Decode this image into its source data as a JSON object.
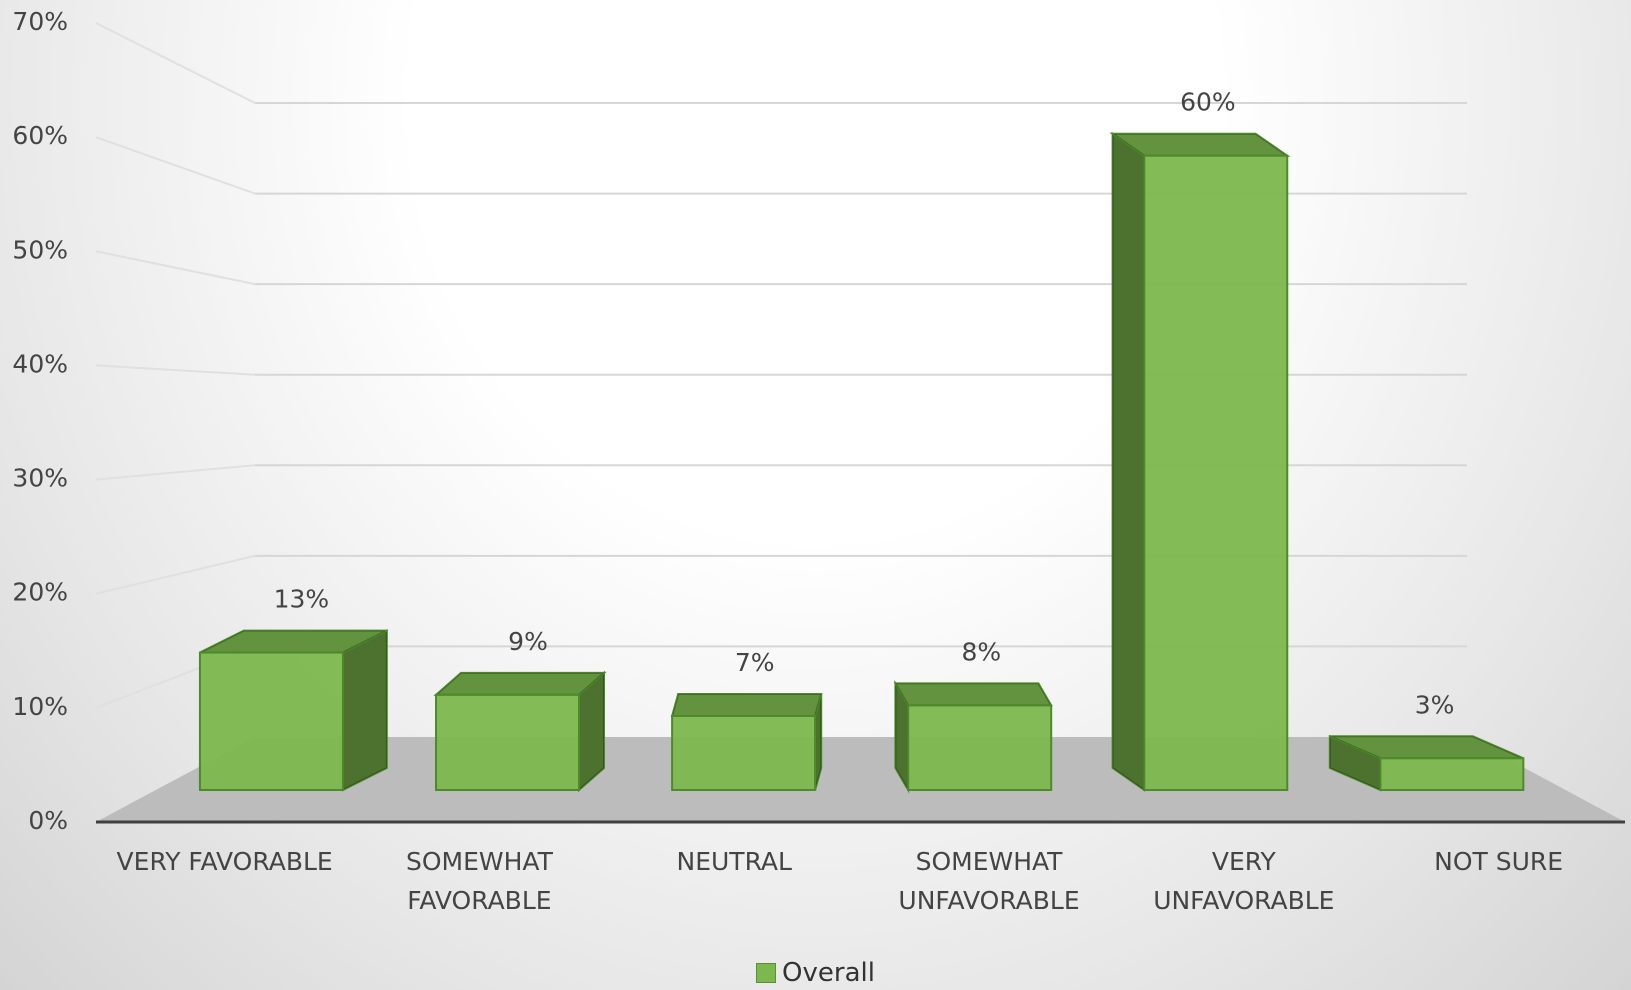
{
  "chart_data": {
    "type": "bar3d",
    "categories": [
      "VERY FAVORABLE",
      "SOMEWHAT FAVORABLE",
      "NEUTRAL",
      "SOMEWHAT UNFAVORABLE",
      "VERY UNFAVORABLE",
      "NOT SURE"
    ],
    "series": [
      {
        "name": "Overall",
        "color": "#7cb84e",
        "values": [
          13,
          9,
          7,
          8,
          60,
          3
        ],
        "value_labels": [
          "13%",
          "9%",
          "7%",
          "8%",
          "60%",
          "3%"
        ]
      }
    ],
    "ylim": [
      0,
      70
    ],
    "yticks": [
      {
        "value": 0,
        "label": "0%"
      },
      {
        "value": 10,
        "label": "10%"
      },
      {
        "value": 20,
        "label": "20%"
      },
      {
        "value": 30,
        "label": "30%"
      },
      {
        "value": 40,
        "label": "40%"
      },
      {
        "value": 50,
        "label": "50%"
      },
      {
        "value": 60,
        "label": "60%"
      },
      {
        "value": 70,
        "label": "70%"
      }
    ],
    "grid": true,
    "legend": "bottom"
  }
}
